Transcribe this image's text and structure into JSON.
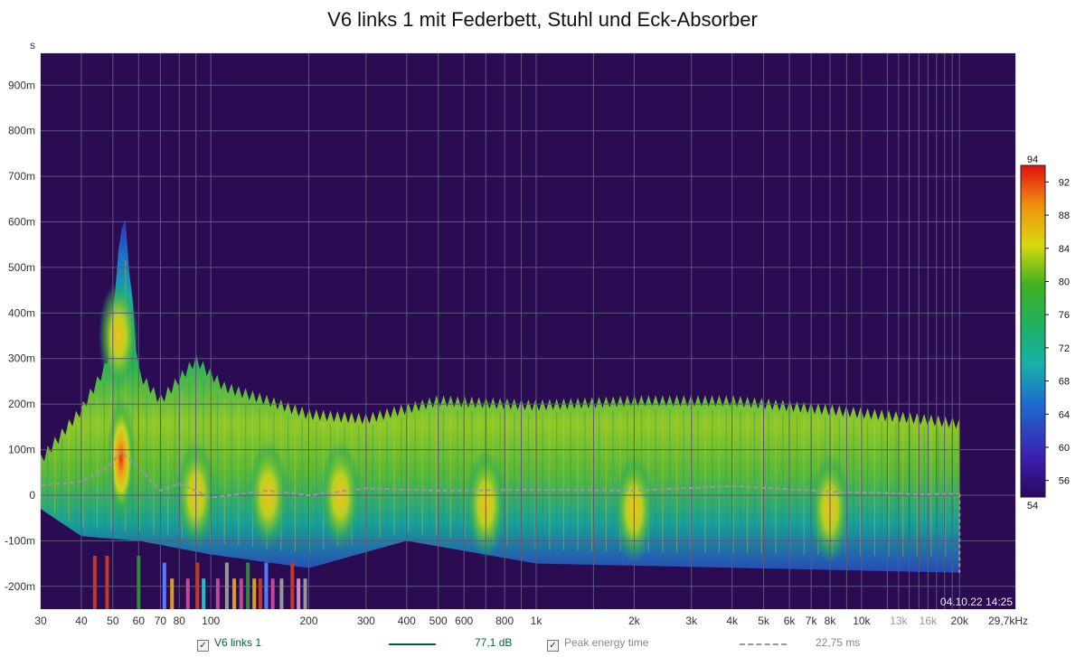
{
  "title": "V6 links 1 mit Federbett, Stuhl und Eck-Absorber",
  "timestamp": "04.10.22 14:25",
  "colorbar": {
    "top_label": "94",
    "bottom_label": "54",
    "ticks": [
      "92",
      "88",
      "84",
      "80",
      "76",
      "72",
      "68",
      "64",
      "60",
      "56"
    ],
    "min": 54,
    "max": 94
  },
  "legend": {
    "series1_label": "V6 links 1",
    "series1_value": "77,1 dB",
    "series1_color": "#0b5e40",
    "series2_label": "Peak energy time",
    "series2_value": "22,75 ms",
    "series2_color": "#888888",
    "checkbox_mark": "✓"
  },
  "chart_data": {
    "type": "heatmap",
    "title": "V6 links 1 mit Federbett, Stuhl und Eck-Absorber",
    "xlabel": "",
    "ylabel": "s",
    "x_scale": "log",
    "x_unit": "Hz",
    "xlim": [
      30,
      29700
    ],
    "ylim": [
      -0.25,
      0.97
    ],
    "x_ticks": [
      {
        "v": 30,
        "t": "30"
      },
      {
        "v": 40,
        "t": "40"
      },
      {
        "v": 50,
        "t": "50"
      },
      {
        "v": 60,
        "t": "60"
      },
      {
        "v": 70,
        "t": "70"
      },
      {
        "v": 80,
        "t": "80"
      },
      {
        "v": 100,
        "t": "100"
      },
      {
        "v": 200,
        "t": "200"
      },
      {
        "v": 300,
        "t": "300"
      },
      {
        "v": 400,
        "t": "400"
      },
      {
        "v": 500,
        "t": "500"
      },
      {
        "v": 600,
        "t": "600"
      },
      {
        "v": 800,
        "t": "800"
      },
      {
        "v": 1000,
        "t": "1k"
      },
      {
        "v": 2000,
        "t": "2k"
      },
      {
        "v": 3000,
        "t": "3k"
      },
      {
        "v": 4000,
        "t": "4k"
      },
      {
        "v": 5000,
        "t": "5k"
      },
      {
        "v": 6000,
        "t": "6k"
      },
      {
        "v": 7000,
        "t": "7k"
      },
      {
        "v": 8000,
        "t": "8k"
      },
      {
        "v": 10000,
        "t": "10k"
      },
      {
        "v": 13000,
        "t": "13k",
        "dim": true
      },
      {
        "v": 16000,
        "t": "16k",
        "dim": true
      },
      {
        "v": 20000,
        "t": "20k"
      },
      {
        "v": 29700,
        "t": "29,7kHz"
      }
    ],
    "x_minor": [
      90,
      700,
      900,
      1500,
      9000,
      12000,
      14000,
      15000,
      17000,
      18000,
      19000
    ],
    "y_ticks": [
      {
        "v": 0.9,
        "t": "900m"
      },
      {
        "v": 0.8,
        "t": "800m"
      },
      {
        "v": 0.7,
        "t": "700m"
      },
      {
        "v": 0.6,
        "t": "600m"
      },
      {
        "v": 0.5,
        "t": "500m"
      },
      {
        "v": 0.4,
        "t": "400m"
      },
      {
        "v": 0.3,
        "t": "300m"
      },
      {
        "v": 0.2,
        "t": "200m"
      },
      {
        "v": 0.1,
        "t": "100m"
      },
      {
        "v": 0.0,
        "t": "0"
      },
      {
        "v": -0.1,
        "t": "-100m"
      },
      {
        "v": -0.2,
        "t": "-200m"
      }
    ],
    "decay_envelope_top_s": [
      {
        "f": 30,
        "t": 0.09
      },
      {
        "f": 40,
        "t": 0.2
      },
      {
        "f": 48,
        "t": 0.3
      },
      {
        "f": 54,
        "t": 0.65
      },
      {
        "f": 60,
        "t": 0.28
      },
      {
        "f": 70,
        "t": 0.22
      },
      {
        "f": 90,
        "t": 0.31
      },
      {
        "f": 110,
        "t": 0.25
      },
      {
        "f": 150,
        "t": 0.22
      },
      {
        "f": 200,
        "t": 0.19
      },
      {
        "f": 300,
        "t": 0.18
      },
      {
        "f": 500,
        "t": 0.22
      },
      {
        "f": 1000,
        "t": 0.21
      },
      {
        "f": 2000,
        "t": 0.22
      },
      {
        "f": 4000,
        "t": 0.22
      },
      {
        "f": 8000,
        "t": 0.2
      },
      {
        "f": 15000,
        "t": 0.18
      },
      {
        "f": 20000,
        "t": 0.17
      }
    ],
    "decay_envelope_bottom_s": [
      {
        "f": 30,
        "t": -0.03
      },
      {
        "f": 40,
        "t": -0.09
      },
      {
        "f": 60,
        "t": -0.1
      },
      {
        "f": 100,
        "t": -0.13
      },
      {
        "f": 200,
        "t": -0.16
      },
      {
        "f": 400,
        "t": -0.1
      },
      {
        "f": 1000,
        "t": -0.15
      },
      {
        "f": 20000,
        "t": -0.17
      }
    ],
    "series": [
      {
        "name": "Peak energy time",
        "color": "#999999",
        "points": [
          {
            "f": 30,
            "t": 0.022
          },
          {
            "f": 40,
            "t": 0.03
          },
          {
            "f": 48,
            "t": 0.06
          },
          {
            "f": 53,
            "t": 0.095
          },
          {
            "f": 60,
            "t": 0.06
          },
          {
            "f": 70,
            "t": 0.01
          },
          {
            "f": 80,
            "t": 0.025
          },
          {
            "f": 90,
            "t": 0.01
          },
          {
            "f": 100,
            "t": -0.005
          },
          {
            "f": 150,
            "t": 0.01
          },
          {
            "f": 200,
            "t": 0.0
          },
          {
            "f": 300,
            "t": 0.015
          },
          {
            "f": 500,
            "t": 0.01
          },
          {
            "f": 1000,
            "t": 0.012
          },
          {
            "f": 2000,
            "t": 0.01
          },
          {
            "f": 4000,
            "t": 0.02
          },
          {
            "f": 8000,
            "t": 0.008
          },
          {
            "f": 15000,
            "t": 0.002
          },
          {
            "f": 20000,
            "t": 0.003
          }
        ]
      }
    ],
    "hotspots": [
      {
        "f": 53,
        "t": 0.08,
        "level": 93
      },
      {
        "f": 52,
        "t": 0.35,
        "level": 78
      },
      {
        "f": 90,
        "t": 0.0,
        "level": 86
      },
      {
        "f": 150,
        "t": 0.0,
        "level": 86
      },
      {
        "f": 250,
        "t": 0.0,
        "level": 84
      },
      {
        "f": 700,
        "t": -0.02,
        "level": 83
      },
      {
        "f": 2000,
        "t": -0.03,
        "level": 82
      },
      {
        "f": 8000,
        "t": -0.03,
        "level": 81
      }
    ],
    "mode_markers": [
      {
        "f": 44,
        "color": "#c0392b"
      },
      {
        "f": 48,
        "color": "#c0392b"
      },
      {
        "f": 60,
        "color": "#2e8b3a"
      },
      {
        "f": 72,
        "color": "#5a78ff"
      },
      {
        "f": 76,
        "color": "#d4a020"
      },
      {
        "f": 85,
        "color": "#c04a9a"
      },
      {
        "f": 91,
        "color": "#c0392b"
      },
      {
        "f": 95,
        "color": "#20c0c0"
      },
      {
        "f": 105,
        "color": "#c04a9a"
      },
      {
        "f": 112,
        "color": "#999999"
      },
      {
        "f": 118,
        "color": "#d4a020"
      },
      {
        "f": 124,
        "color": "#c04a9a"
      },
      {
        "f": 130,
        "color": "#2e8b3a"
      },
      {
        "f": 136,
        "color": "#d4a020"
      },
      {
        "f": 142,
        "color": "#c0392b"
      },
      {
        "f": 148,
        "color": "#5a78ff"
      },
      {
        "f": 155,
        "color": "#c04a9a"
      },
      {
        "f": 165,
        "color": "#999999"
      },
      {
        "f": 178,
        "color": "#c0392b"
      },
      {
        "f": 186,
        "color": "#cc88cc"
      },
      {
        "f": 195,
        "color": "#999999"
      }
    ]
  }
}
